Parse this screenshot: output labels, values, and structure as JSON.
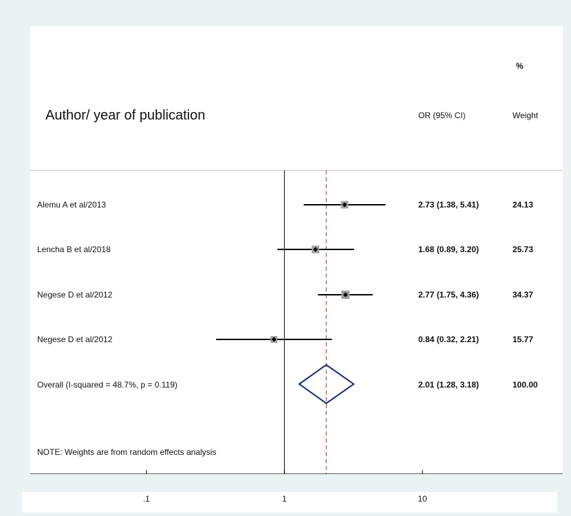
{
  "chart_data": {
    "type": "forest",
    "x_scale": "log",
    "x_ticks": [
      {
        "value": 0.1,
        "label": ".1"
      },
      {
        "value": 1,
        "label": "1"
      },
      {
        "value": 10,
        "label": "10"
      }
    ],
    "xlim": [
      0.0144,
      104
    ],
    "null_line": 1,
    "overall_line": 2.01,
    "header": {
      "study_col": "Author/ year of publication",
      "effect_col": "OR (95% CI)",
      "weight_col_line1": "%",
      "weight_col_line2": "Weight"
    },
    "studies": [
      {
        "label": "Alemu A et al/2013",
        "or": 2.73,
        "lo": 1.38,
        "hi": 5.41,
        "or_text": "2.73 (1.38, 5.41)",
        "weight": 24.13,
        "weight_text": "24.13"
      },
      {
        "label": "Lencha B et al/2018",
        "or": 1.68,
        "lo": 0.89,
        "hi": 3.2,
        "or_text": "1.68 (0.89, 3.20)",
        "weight": 25.73,
        "weight_text": "25.73"
      },
      {
        "label": "Negese D et al/2012",
        "or": 2.77,
        "lo": 1.75,
        "hi": 4.36,
        "or_text": "2.77 (1.75, 4.36)",
        "weight": 34.37,
        "weight_text": "34.37"
      },
      {
        "label": "Negese D et al/2012",
        "or": 0.84,
        "lo": 0.32,
        "hi": 2.21,
        "or_text": "0.84 (0.32, 2.21)",
        "weight": 15.77,
        "weight_text": "15.77"
      }
    ],
    "overall": {
      "label": "Overall  (I-squared = 48.7%, p = 0.119)",
      "or": 2.01,
      "lo": 1.28,
      "hi": 3.18,
      "or_text": "2.01 (1.28, 3.18)",
      "weight_text": "100.00"
    },
    "note": "NOTE: Weights are from random effects analysis",
    "colors": {
      "diamond": "#1f2a7a",
      "overall_line": "#b22222",
      "box": "#a0a0a0",
      "ci_line": "#000000",
      "divider": "#bdbdbd",
      "axis": "#000000"
    }
  }
}
